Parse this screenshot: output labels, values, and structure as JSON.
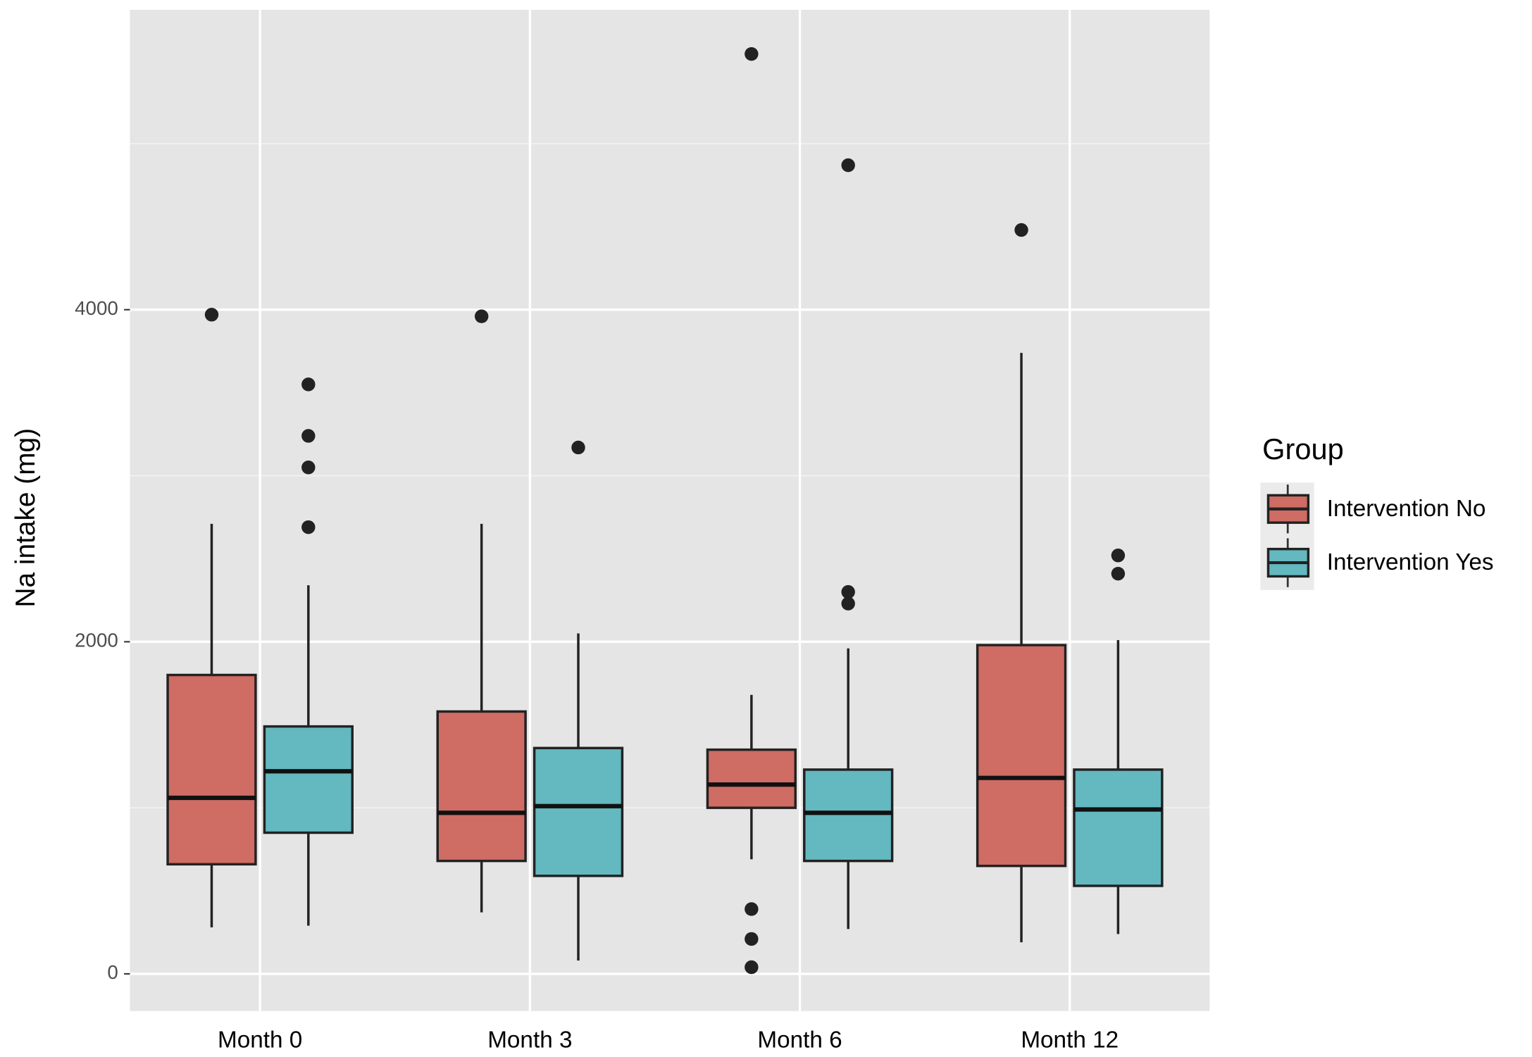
{
  "chart_data": {
    "type": "boxplot",
    "y_label": "Na intake (mg)",
    "categories": [
      "Month 0",
      "Month 3",
      "Month 6",
      "Month 12"
    ],
    "ylim": [
      -224,
      5806
    ],
    "yticks": [
      0,
      2000,
      4000
    ],
    "minor_grid": [
      1000,
      3000,
      5000
    ],
    "grid": true,
    "legend_title": "Group",
    "legend": "right",
    "series": [
      {
        "name": "Intervention No",
        "color": "#cf6c64",
        "boxes": [
          {
            "low": 280,
            "q1": 660,
            "median": 1060,
            "q3": 1800,
            "high": 2710,
            "outliers": [
              3970
            ]
          },
          {
            "low": 370,
            "q1": 680,
            "median": 970,
            "q3": 1580,
            "high": 2710,
            "outliers": [
              3960
            ]
          },
          {
            "low": 690,
            "q1": 1000,
            "median": 1140,
            "q3": 1350,
            "high": 1680,
            "outliers": [
              5540,
              390,
              210,
              40
            ]
          },
          {
            "low": 190,
            "q1": 650,
            "median": 1180,
            "q3": 1980,
            "high": 3740,
            "outliers": [
              4480
            ]
          }
        ]
      },
      {
        "name": "Intervention Yes",
        "color": "#64b8bf",
        "boxes": [
          {
            "low": 290,
            "q1": 850,
            "median": 1220,
            "q3": 1490,
            "high": 2340,
            "outliers": [
              3550,
              3240,
              3050,
              2690
            ]
          },
          {
            "low": 80,
            "q1": 590,
            "median": 1010,
            "q3": 1360,
            "high": 2050,
            "outliers": [
              3170
            ]
          },
          {
            "low": 270,
            "q1": 680,
            "median": 970,
            "q3": 1230,
            "high": 1960,
            "outliers": [
              4870,
              2300,
              2230
            ]
          },
          {
            "low": 240,
            "q1": 530,
            "median": 990,
            "q3": 1230,
            "high": 2010,
            "outliers": [
              2520,
              2410
            ]
          }
        ]
      }
    ]
  }
}
